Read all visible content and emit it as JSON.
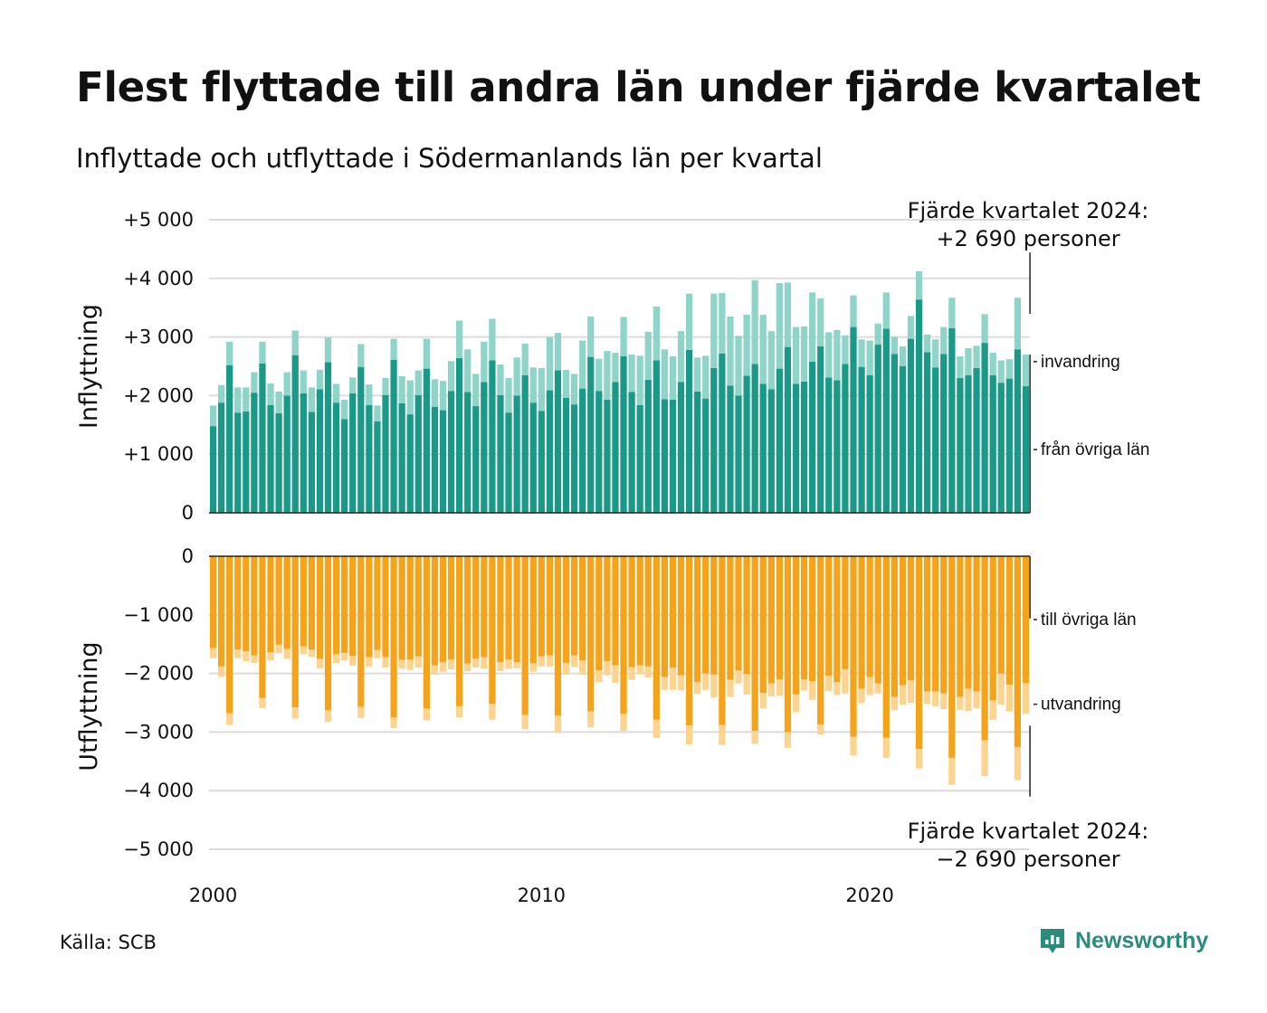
{
  "title": "Flest flyttade till andra län under fjärde kvartalet",
  "subtitle": "Inflyttade och utflyttade i Södermanlands län per kvartal",
  "source": "Källa: SCB",
  "brand": {
    "name": "Newsworthy",
    "icon": "newsworthy-logo-icon",
    "color": "#2b8c7e"
  },
  "chart_data": {
    "type": "bar",
    "start": "2000 Q1",
    "end": "2024 Q4",
    "x_ticks": [
      "2000",
      "2010",
      "2020"
    ],
    "panels": [
      {
        "name": "inflow",
        "ylabel": "Inflyttning",
        "y_ticks": [
          {
            "value": 5000,
            "label": "+5 000"
          },
          {
            "value": 4000,
            "label": "+4 000"
          },
          {
            "value": 3000,
            "label": "+3 000"
          },
          {
            "value": 2000,
            "label": "+2 000"
          },
          {
            "value": 1000,
            "label": "+1 000"
          },
          {
            "value": 0,
            "label": "0"
          }
        ],
        "ylim": [
          0,
          5000
        ],
        "series": [
          {
            "name": "från övriga län",
            "color": "#1a9988",
            "values": [
              1480,
              1880,
              2520,
              1710,
              1730,
              2050,
              2550,
              1840,
              1700,
              2000,
              2690,
              2040,
              1720,
              2110,
              2570,
              1880,
              1600,
              2040,
              2490,
              1840,
              1560,
              2010,
              2610,
              1870,
              1680,
              2010,
              2460,
              1810,
              1750,
              2080,
              2640,
              2060,
              1820,
              2230,
              2600,
              2010,
              1710,
              2000,
              2350,
              1880,
              1740,
              2090,
              2430,
              1960,
              1850,
              2120,
              2660,
              2080,
              1930,
              2230,
              2670,
              2060,
              1840,
              2270,
              2600,
              1940,
              1930,
              2230,
              2780,
              2070,
              1950,
              2470,
              2720,
              2170,
              2000,
              2340,
              2540,
              2200,
              2110,
              2460,
              2830,
              2200,
              2240,
              2580,
              2840,
              2310,
              2260,
              2540,
              3170,
              2490,
              2350,
              2870,
              3140,
              2710,
              2500,
              2970,
              3640,
              2740,
              2480,
              2710,
              3150,
              2300,
              2350,
              2470,
              2900,
              2350,
              2220,
              2290,
              2790,
              2160
            ]
          },
          {
            "name": "invandring",
            "color": "#8fd4c8",
            "values": [
              350,
              300,
              400,
              430,
              410,
              350,
              370,
              370,
              370,
              400,
              420,
              390,
              420,
              330,
              420,
              320,
              330,
              270,
              390,
              350,
              270,
              290,
              360,
              460,
              580,
              420,
              510,
              470,
              500,
              510,
              640,
              730,
              550,
              690,
              710,
              520,
              590,
              650,
              540,
              600,
              730,
              910,
              640,
              480,
              520,
              820,
              690,
              550,
              830,
              500,
              670,
              640,
              840,
              820,
              920,
              850,
              740,
              870,
              960,
              580,
              730,
              1270,
              1030,
              1180,
              1020,
              1040,
              1430,
              1180,
              990,
              1460,
              1100,
              970,
              940,
              1180,
              820,
              770,
              860,
              490,
              540,
              470,
              590,
              360,
              620,
              290,
              340,
              390,
              480,
              300,
              480,
              460,
              520,
              370,
              460,
              380,
              490,
              380,
              380,
              330,
              880,
              540
            ]
          }
        ],
        "right_labels": [
          "invandring",
          "från övriga län"
        ],
        "annotation": [
          "Fjärde kvartalet 2024:",
          "+2 690 personer"
        ]
      },
      {
        "name": "outflow",
        "ylabel": "Utflyttning",
        "y_ticks": [
          {
            "value": 0,
            "label": "0"
          },
          {
            "value": -1000,
            "label": "−1 000"
          },
          {
            "value": -2000,
            "label": "−2 000"
          },
          {
            "value": -3000,
            "label": "−3 000"
          },
          {
            "value": -4000,
            "label": "−4 000"
          },
          {
            "value": -5000,
            "label": "−5 000"
          }
        ],
        "ylim": [
          -5000,
          0
        ],
        "series": [
          {
            "name": "till övriga län",
            "color": "#f5a31a",
            "values": [
              -1570,
              -1880,
              -2680,
              -1590,
              -1620,
              -1690,
              -2420,
              -1640,
              -1510,
              -1580,
              -2580,
              -1540,
              -1590,
              -1750,
              -2630,
              -1670,
              -1650,
              -1700,
              -2570,
              -1720,
              -1600,
              -1720,
              -2750,
              -1770,
              -1760,
              -1710,
              -2600,
              -1860,
              -1810,
              -1760,
              -2560,
              -1830,
              -1750,
              -1720,
              -2520,
              -1810,
              -1760,
              -1810,
              -2710,
              -1830,
              -1710,
              -1690,
              -2720,
              -1820,
              -1690,
              -1780,
              -2650,
              -1950,
              -1790,
              -1860,
              -2690,
              -1890,
              -1860,
              -1880,
              -2790,
              -2060,
              -1900,
              -2030,
              -2890,
              -2150,
              -2000,
              -2020,
              -2880,
              -2110,
              -1950,
              -2010,
              -2980,
              -2330,
              -2170,
              -2100,
              -3000,
              -2360,
              -2100,
              -2130,
              -2870,
              -2040,
              -2150,
              -1930,
              -3080,
              -2260,
              -2060,
              -2170,
              -3100,
              -2400,
              -2200,
              -2120,
              -3290,
              -2310,
              -2310,
              -2340,
              -3440,
              -2400,
              -2260,
              -2310,
              -3140,
              -2460,
              -2000,
              -2190,
              -3260,
              -2160
            ]
          },
          {
            "name": "utvandring",
            "color": "#fcd38f",
            "values": [
              -170,
              -180,
              -200,
              -150,
              -170,
              -130,
              -170,
              -140,
              -140,
              -170,
              -190,
              -130,
              -130,
              -160,
              -200,
              -150,
              -130,
              -170,
              -190,
              -160,
              -140,
              -180,
              -180,
              -150,
              -180,
              -190,
              -200,
              -160,
              -160,
              -170,
              -190,
              -130,
              -150,
              -200,
              -270,
              -150,
              -160,
              -100,
              -240,
              -140,
              -170,
              -190,
              -290,
              -200,
              -200,
              -240,
              -270,
              -200,
              -240,
              -300,
              -290,
              -220,
              -150,
              -190,
              -310,
              -220,
              -380,
              -260,
              -320,
              -200,
              -280,
              -390,
              -340,
              -290,
              -220,
              -350,
              -220,
              -270,
              -220,
              -280,
              -270,
              -300,
              -190,
              -320,
              -170,
              -260,
              -220,
              -410,
              -320,
              -240,
              -310,
              -170,
              -340,
              -230,
              -330,
              -380,
              -330,
              -210,
              -250,
              -270,
              -460,
              -220,
              -380,
              -280,
              -610,
              -330,
              -530,
              -460,
              -560,
              -530
            ]
          }
        ],
        "right_labels": [
          "till övriga län",
          "utvandring"
        ],
        "annotation": [
          "Fjärde kvartalet 2024:",
          "−2 690 personer"
        ]
      }
    ],
    "grid": true,
    "legend": "right, direct labels"
  }
}
